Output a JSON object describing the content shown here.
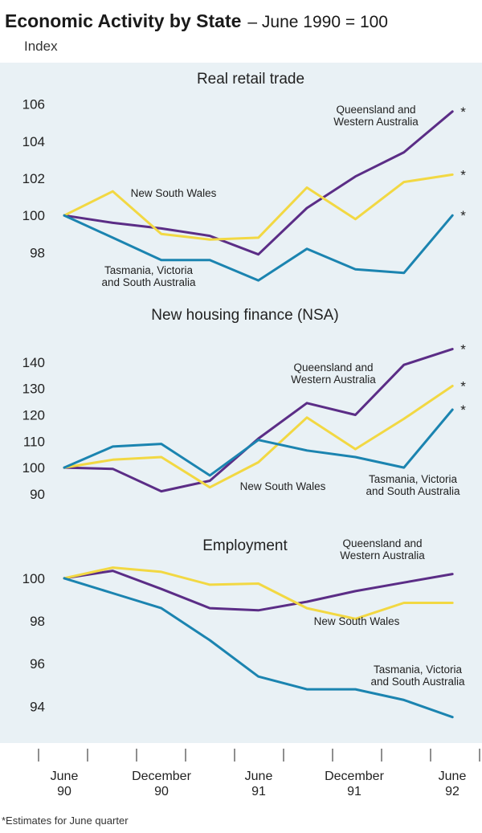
{
  "header": {
    "title": "Economic Activity by State",
    "subtitle": "– June 1990 = 100",
    "unit": "Index"
  },
  "colors": {
    "band": "#e9f1f5",
    "Queensland and Western Australia": "#5b2d86",
    "New South Wales": "#f2d843",
    "Tasmania, Victoria and South Australia": "#1b84b0"
  },
  "x_labels": [
    {
      "line1": "June",
      "line2": "90"
    },
    {
      "line1": "December",
      "line2": "90"
    },
    {
      "line1": "June",
      "line2": "91"
    },
    {
      "line1": "December",
      "line2": "91"
    },
    {
      "line1": "June",
      "line2": "92"
    }
  ],
  "footnote": "*Estimates for June quarter",
  "chart_data": [
    {
      "type": "line",
      "title": "Real retail trade",
      "ylim": [
        96.2,
        106.5
      ],
      "yticks": [
        98,
        100,
        102,
        104,
        106
      ],
      "tick_labels": [
        "98",
        "100",
        "102",
        "104",
        "106"
      ],
      "x": [
        0,
        1,
        2,
        3,
        4,
        5,
        6,
        7,
        8
      ],
      "series": [
        {
          "name": "Queensland and Western Australia",
          "values": [
            100.0,
            99.6,
            99.3,
            98.9,
            97.9,
            100.4,
            102.1,
            103.4,
            105.6
          ],
          "star": "*",
          "label": [
            "Queensland and",
            "Western Australia"
          ]
        },
        {
          "name": "New South Wales",
          "values": [
            100.0,
            101.3,
            99.0,
            98.7,
            98.8,
            101.5,
            99.8,
            101.8,
            102.2
          ],
          "star": "*",
          "label": [
            "New South Wales"
          ]
        },
        {
          "name": "Tasmania, Victoria and South Australia",
          "values": [
            100.0,
            98.8,
            97.6,
            97.6,
            96.5,
            98.2,
            97.1,
            96.9,
            100.0
          ],
          "star": "*",
          "label": [
            "Tasmania, Victoria",
            "and South Australia"
          ]
        }
      ]
    },
    {
      "type": "line",
      "title": "New housing finance (NSA)",
      "ylim": [
        86,
        147
      ],
      "yticks": [
        90,
        100,
        110,
        120,
        130,
        140
      ],
      "tick_labels": [
        "90",
        "100",
        "110",
        "120",
        "130",
        "140"
      ],
      "x": [
        0,
        1,
        2,
        3,
        4,
        5,
        6,
        7,
        8
      ],
      "series": [
        {
          "name": "Queensland and Western Australia",
          "values": [
            100,
            99.5,
            91,
            95,
            111,
            124.5,
            120,
            139,
            145
          ],
          "star": "*",
          "label": [
            "Queensland and",
            "Western Australia"
          ]
        },
        {
          "name": "New South Wales",
          "values": [
            100,
            103,
            104,
            92.5,
            102,
            119,
            107,
            118.5,
            131
          ],
          "star": "*",
          "label": [
            "New South Wales"
          ]
        },
        {
          "name": "Tasmania, Victoria and South Australia",
          "values": [
            100,
            108,
            109,
            97,
            110.5,
            106.5,
            104,
            100,
            122
          ],
          "star": "*",
          "label": [
            "Tasmania, Victoria",
            "and South Australia"
          ]
        }
      ]
    },
    {
      "type": "line",
      "title": "Employment",
      "ylim": [
        93.0,
        101.2
      ],
      "yticks": [
        94,
        96,
        98,
        100
      ],
      "tick_labels": [
        "94",
        "96",
        "98",
        "100"
      ],
      "x": [
        0,
        1,
        2,
        3,
        4,
        5,
        6,
        7,
        8
      ],
      "series": [
        {
          "name": "Queensland and Western Australia",
          "values": [
            100.0,
            100.35,
            99.5,
            98.6,
            98.5,
            98.9,
            99.4,
            99.8,
            100.2
          ],
          "star": "",
          "label": [
            "Queensland and",
            "Western Australia"
          ]
        },
        {
          "name": "New South Wales",
          "values": [
            100.0,
            100.5,
            100.3,
            99.7,
            99.75,
            98.6,
            98.1,
            98.85,
            98.85
          ],
          "star": "",
          "label": [
            "New South Wales"
          ]
        },
        {
          "name": "Tasmania, Victoria and South Australia",
          "values": [
            100.0,
            99.3,
            98.6,
            97.1,
            95.4,
            94.8,
            94.8,
            94.3,
            93.5
          ],
          "star": "",
          "label": [
            "Tasmania, Victoria",
            "and South Australia"
          ]
        }
      ]
    }
  ]
}
